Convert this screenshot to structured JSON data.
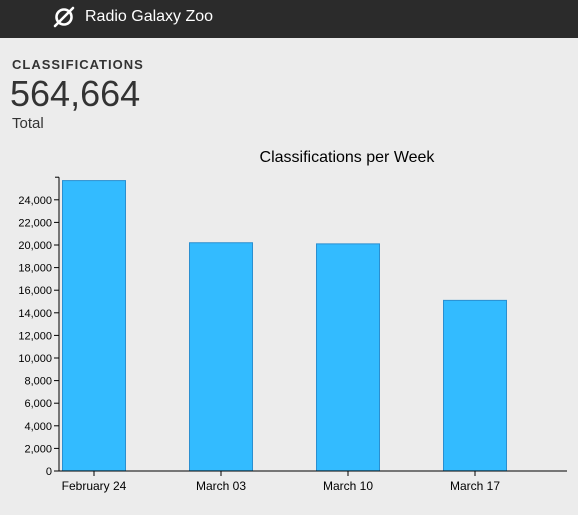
{
  "header": {
    "site_name": "Radio Galaxy Zoo",
    "logo_icon": "galaxy-logo-icon"
  },
  "stats": {
    "label": "CLASSIFICATIONS",
    "value": "564,664",
    "sublabel": "Total"
  },
  "colors": {
    "topbar": "#2b2b2b",
    "bar_fill": "#33bbff",
    "bar_stroke": "#2a8fd0"
  },
  "chart_data": {
    "type": "bar",
    "title": "Classifications per Week",
    "categories": [
      "February 24",
      "March 03",
      "March 10",
      "March 17"
    ],
    "values": [
      25700,
      20200,
      20100,
      15100
    ],
    "ylim": [
      0,
      26000
    ],
    "yticks": [
      0,
      2000,
      4000,
      6000,
      8000,
      10000,
      12000,
      14000,
      16000,
      18000,
      20000,
      22000,
      24000
    ],
    "ytick_labels": [
      "0",
      "2,000",
      "4,000",
      "6,000",
      "8,000",
      "10,000",
      "12,000",
      "14,000",
      "16,000",
      "18,000",
      "20,000",
      "22,000",
      "24,000"
    ],
    "xlabel": "",
    "ylabel": "",
    "grid": false,
    "legend": "none"
  }
}
